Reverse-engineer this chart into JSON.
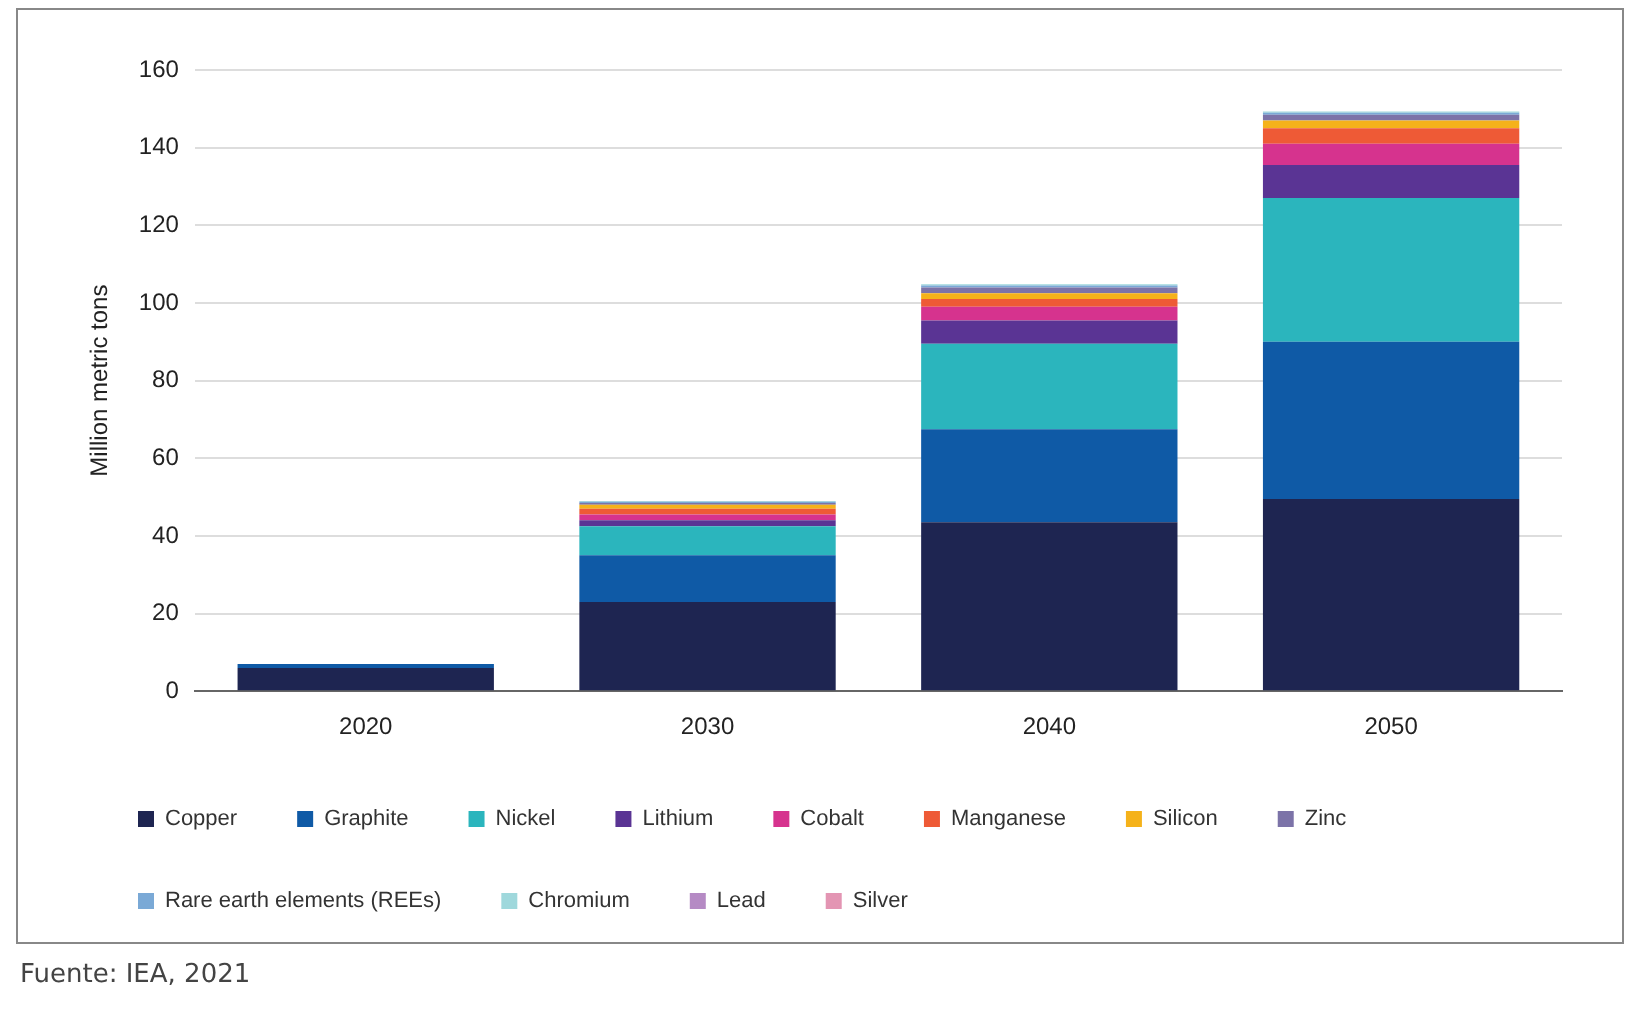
{
  "chart_data": {
    "type": "bar",
    "stacked": true,
    "ylabel": "Million metric tons",
    "categories": [
      "2020",
      "2030",
      "2040",
      "2050"
    ],
    "series": [
      {
        "name": "Copper",
        "color": "#1e2551",
        "values": [
          6,
          23,
          43.5,
          49.5
        ]
      },
      {
        "name": "Graphite",
        "color": "#0f5aa6",
        "values": [
          1,
          12,
          24,
          40.5
        ]
      },
      {
        "name": "Nickel",
        "color": "#2bb5bd",
        "values": [
          null,
          7.5,
          22,
          37
        ]
      },
      {
        "name": "Lithium",
        "color": "#5a3494",
        "values": [
          null,
          1.5,
          6,
          8.5
        ]
      },
      {
        "name": "Cobalt",
        "color": "#d6338e",
        "values": [
          null,
          1.5,
          3.5,
          5.5
        ]
      },
      {
        "name": "Manganese",
        "color": "#ee5a36",
        "values": [
          null,
          1.5,
          2,
          4
        ]
      },
      {
        "name": "Silicon",
        "color": "#f5b21a",
        "values": [
          null,
          1,
          1.5,
          2
        ]
      },
      {
        "name": "Zinc",
        "color": "#7c73a8",
        "values": [
          null,
          0.5,
          1.5,
          1.5
        ]
      },
      {
        "name": "Rare earth elements (REEs)",
        "color": "#7aa9d6",
        "values": [
          null,
          0.3,
          0.5,
          0.5
        ]
      },
      {
        "name": "Chromium",
        "color": "#9fd8dc",
        "values": [
          null,
          0.2,
          0.3,
          0.3
        ]
      },
      {
        "name": "Lead",
        "color": "#b58ac4",
        "values": [
          null,
          null,
          null,
          null
        ]
      },
      {
        "name": "Silver",
        "color": "#e395b3",
        "values": [
          null,
          null,
          null,
          null
        ]
      }
    ],
    "ylim": [
      0,
      160
    ],
    "yticks": [
      0,
      20,
      40,
      60,
      80,
      100,
      120,
      140,
      160
    ],
    "grid": "y",
    "legend": "bottom",
    "annotations": [
      "Fuente: IEA, 2021"
    ]
  }
}
